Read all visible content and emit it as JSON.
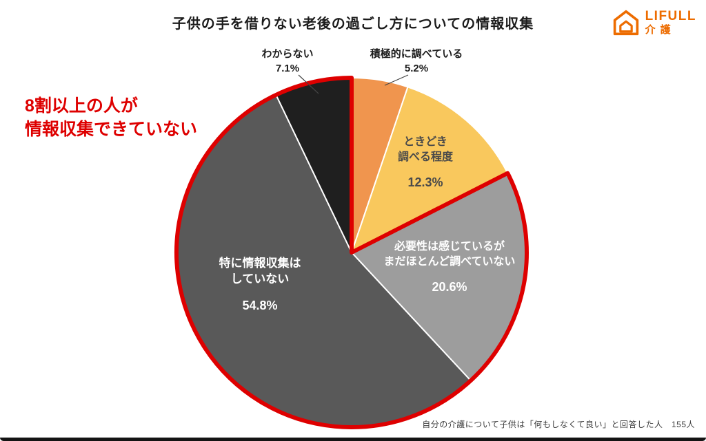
{
  "page": {
    "title": "子供の手を借りない老後の過ごし方についての情報収集",
    "footnote": "自分の介護について子供は「何もしなくて良い」と回答した人　155人"
  },
  "logo": {
    "brand": "LIFULL",
    "sub": "介護",
    "color": "#ED6C00"
  },
  "annotation": {
    "line1": "8割以上の人が",
    "line2": "情報収集できていない",
    "color": "#DE0000"
  },
  "chart_data": {
    "type": "pie",
    "title": "子供の手を借りない老後の過ごし方についての情報収集",
    "direction": "clockwise",
    "start_angle_deg": 0,
    "unit": "%",
    "categories": [
      "積極的に調べている",
      "ときどき調べる程度",
      "必要性は感じているがまだほとんど調べていない",
      "特に情報収集はしていない",
      "わからない"
    ],
    "values": [
      5.2,
      12.3,
      20.6,
      54.8,
      7.1
    ],
    "colors": [
      "#F0954E",
      "#F9C85D",
      "#9D9D9D",
      "#595959",
      "#1F1F1F"
    ],
    "slice_labels": [
      {
        "lines": [
          "積極的に調べている"
        ],
        "pct": "5.2%",
        "placement": "outside-top"
      },
      {
        "lines": [
          "ときどき",
          "調べる程度"
        ],
        "pct": "12.3%",
        "placement": "inside"
      },
      {
        "lines": [
          "必要性は感じているが",
          "まだほとんど調べていない"
        ],
        "pct": "20.6%",
        "placement": "inside"
      },
      {
        "lines": [
          "特に情報収集は",
          "していない"
        ],
        "pct": "54.8%",
        "placement": "inside"
      },
      {
        "lines": [
          "わからない"
        ],
        "pct": "7.1%",
        "placement": "outside-top"
      }
    ],
    "highlight": {
      "segments": [
        2,
        3,
        4
      ],
      "total": 82.5,
      "label": "8割以上の人が情報収集できていない",
      "color": "#DE0000"
    },
    "legend": "none",
    "footnote": "自分の介護について子供は「何もしなくて良い」と回答した人　155人"
  }
}
